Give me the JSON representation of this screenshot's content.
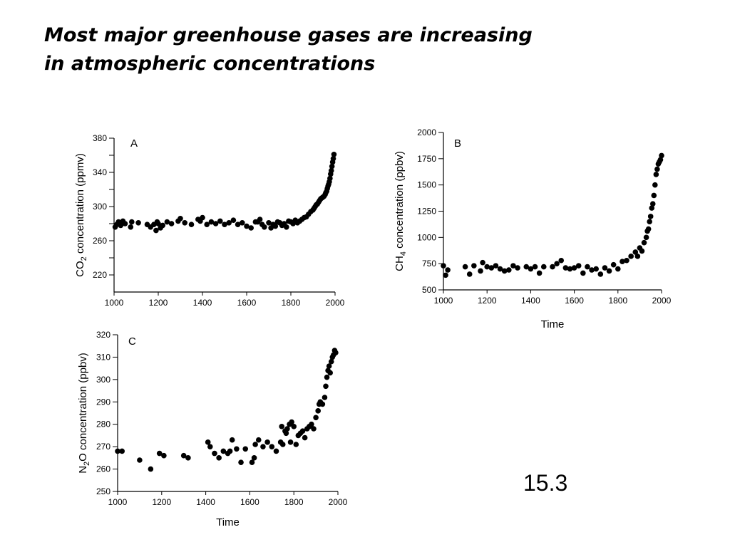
{
  "slide": {
    "title_line1": "Most major greenhouse gases are increasing",
    "title_line2": "in atmospheric concentrations",
    "slide_number": "15.3"
  },
  "chart_data": [
    {
      "type": "scatter",
      "panel_label": "A",
      "ylabel": "CO2 concentration (ppmv)",
      "ylabel_parts": {
        "prefix": "CO",
        "subscript": "2",
        "suffix": " concentration (ppmv)"
      },
      "xlabel": "",
      "xlim": [
        1000,
        2000
      ],
      "ylim": [
        200,
        380
      ],
      "x_ticks": [
        "1000",
        "1200",
        "1400",
        "1600",
        "1800",
        "2000"
      ],
      "y_ticks": [
        "220",
        "260",
        "300",
        "340",
        "380"
      ],
      "y_minor_ticks": [
        240,
        280,
        320,
        360
      ],
      "series": [
        {
          "x": [
            1005,
            1012,
            1020,
            1030,
            1040,
            1050,
            1075,
            1080,
            1110,
            1150,
            1165,
            1180,
            1190,
            1195,
            1200,
            1210,
            1220,
            1240,
            1260,
            1290,
            1300,
            1320,
            1350,
            1380,
            1390,
            1400,
            1420,
            1440,
            1460,
            1480,
            1500,
            1520,
            1540,
            1560,
            1580,
            1600,
            1620,
            1640,
            1650,
            1660,
            1670,
            1680,
            1700,
            1710,
            1720,
            1730,
            1740,
            1750,
            1760,
            1770,
            1780,
            1790,
            1800,
            1810,
            1820,
            1830,
            1840,
            1850,
            1860,
            1870,
            1880,
            1890,
            1900,
            1905,
            1910,
            1915,
            1920,
            1925,
            1930,
            1935,
            1940,
            1945,
            1950,
            1955,
            1958,
            1962,
            1965,
            1968,
            1971,
            1974,
            1977,
            1980,
            1983,
            1986,
            1989,
            1992,
            1995
          ],
          "y": [
            276,
            279,
            282,
            278,
            283,
            280,
            276,
            282,
            281,
            279,
            276,
            279,
            272,
            282,
            280,
            275,
            278,
            282,
            280,
            283,
            286,
            281,
            279,
            285,
            283,
            287,
            279,
            282,
            280,
            283,
            279,
            281,
            284,
            279,
            281,
            277,
            275,
            282,
            282,
            285,
            279,
            276,
            281,
            275,
            279,
            277,
            282,
            281,
            278,
            280,
            276,
            283,
            282,
            280,
            284,
            281,
            283,
            285,
            287,
            288,
            291,
            294,
            296,
            298,
            300,
            302,
            303,
            305,
            307,
            309,
            310,
            311,
            312,
            314,
            316,
            318,
            321,
            324,
            326,
            329,
            333,
            338,
            342,
            347,
            352,
            356,
            361
          ]
        }
      ]
    },
    {
      "type": "scatter",
      "panel_label": "B",
      "ylabel": "CH4 concentration (ppbv)",
      "ylabel_parts": {
        "prefix": "CH",
        "subscript": "4",
        "suffix": " concentration (ppbv)"
      },
      "xlabel": "Time",
      "xlim": [
        1000,
        2000
      ],
      "ylim": [
        500,
        2000
      ],
      "x_ticks": [
        "1000",
        "1200",
        "1400",
        "1600",
        "1800",
        "2000"
      ],
      "y_ticks": [
        "500",
        "750",
        "1000",
        "1250",
        "1500",
        "1750",
        "2000"
      ],
      "series": [
        {
          "x": [
            1000,
            1010,
            1020,
            1100,
            1120,
            1140,
            1170,
            1180,
            1200,
            1220,
            1240,
            1260,
            1280,
            1300,
            1320,
            1340,
            1380,
            1400,
            1420,
            1440,
            1460,
            1500,
            1520,
            1540,
            1560,
            1580,
            1600,
            1620,
            1640,
            1660,
            1680,
            1700,
            1720,
            1740,
            1760,
            1780,
            1800,
            1820,
            1840,
            1860,
            1880,
            1890,
            1900,
            1910,
            1920,
            1930,
            1935,
            1940,
            1945,
            1950,
            1955,
            1960,
            1965,
            1970,
            1975,
            1980,
            1985,
            1990,
            1995,
            2000
          ],
          "y": [
            730,
            640,
            690,
            720,
            650,
            730,
            680,
            760,
            720,
            710,
            730,
            700,
            680,
            690,
            730,
            710,
            720,
            700,
            720,
            660,
            720,
            720,
            750,
            780,
            710,
            700,
            710,
            730,
            660,
            720,
            690,
            700,
            650,
            710,
            680,
            740,
            700,
            770,
            780,
            820,
            860,
            820,
            900,
            870,
            950,
            1000,
            1060,
            1080,
            1150,
            1200,
            1280,
            1320,
            1400,
            1500,
            1600,
            1650,
            1700,
            1720,
            1740,
            1780
          ]
        }
      ]
    },
    {
      "type": "scatter",
      "panel_label": "C",
      "ylabel": "N2O concentration (ppbv)",
      "ylabel_parts": {
        "prefix": "N",
        "subscript": "2",
        "suffix": "O concentration (ppbv)"
      },
      "xlabel": "Time",
      "xlim": [
        1000,
        2000
      ],
      "ylim": [
        250,
        320
      ],
      "x_ticks": [
        "1000",
        "1200",
        "1400",
        "1600",
        "1800",
        "2000"
      ],
      "y_ticks": [
        "250",
        "260",
        "270",
        "280",
        "290",
        "300",
        "310",
        "320"
      ],
      "series": [
        {
          "x": [
            1000,
            1020,
            1100,
            1150,
            1190,
            1210,
            1300,
            1320,
            1410,
            1420,
            1440,
            1460,
            1480,
            1500,
            1510,
            1520,
            1540,
            1560,
            1580,
            1610,
            1620,
            1625,
            1640,
            1660,
            1680,
            1700,
            1720,
            1740,
            1745,
            1750,
            1760,
            1765,
            1770,
            1780,
            1785,
            1790,
            1800,
            1810,
            1820,
            1830,
            1840,
            1850,
            1860,
            1870,
            1880,
            1890,
            1900,
            1910,
            1915,
            1920,
            1930,
            1940,
            1945,
            1950,
            1955,
            1960,
            1965,
            1970,
            1975,
            1980,
            1985,
            1990
          ],
          "y": [
            268,
            268,
            264,
            260,
            267,
            266,
            266,
            265,
            272,
            270,
            267,
            265,
            268,
            267,
            268,
            273,
            269,
            263,
            269,
            263,
            265,
            271,
            273,
            270,
            272,
            270,
            268,
            272,
            279,
            271,
            277,
            276,
            278,
            280,
            272,
            281,
            279,
            271,
            275,
            276,
            277,
            274,
            278,
            279,
            280,
            278,
            283,
            286,
            289,
            290,
            289,
            292,
            297,
            301,
            304,
            306,
            303,
            308,
            310,
            311,
            313,
            312
          ]
        }
      ]
    }
  ]
}
